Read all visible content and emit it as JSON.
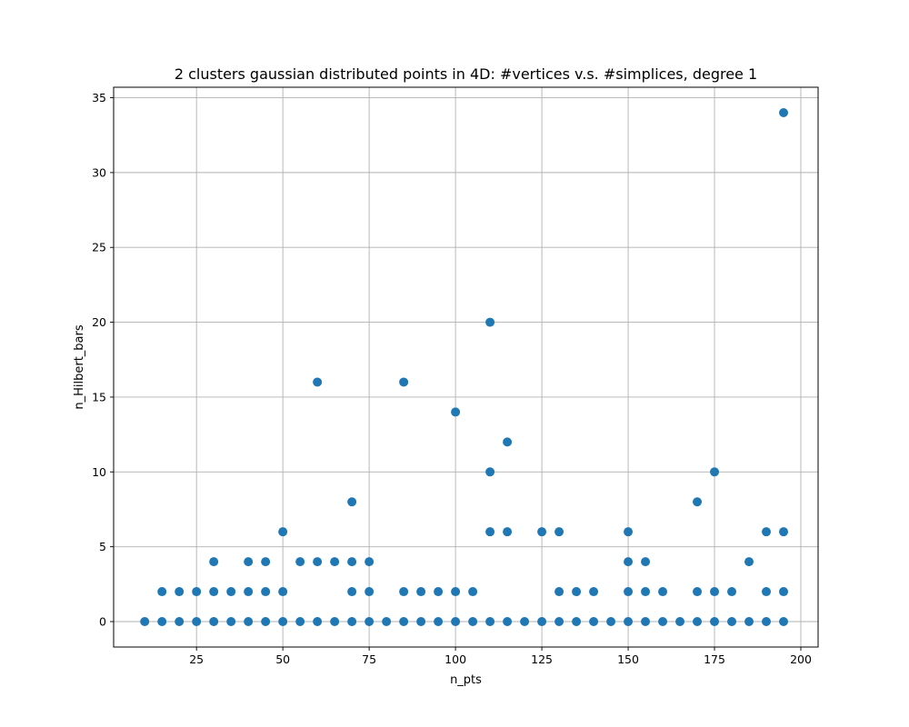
{
  "chart_data": {
    "type": "scatter",
    "title": "2 clusters gaussian distributed points in 4D: #vertices v.s. #simplices, degree 1",
    "xlabel": "n_pts",
    "ylabel": "n_Hilbert_bars",
    "xlim": [
      1,
      205
    ],
    "ylim": [
      -1.7,
      35.7
    ],
    "xticks": [
      25,
      50,
      75,
      100,
      125,
      150,
      175,
      200
    ],
    "yticks": [
      0,
      5,
      10,
      15,
      20,
      25,
      30,
      35
    ],
    "grid": true,
    "marker_color": "#1f77b4",
    "points": [
      [
        10,
        0
      ],
      [
        15,
        0
      ],
      [
        15,
        2
      ],
      [
        20,
        0
      ],
      [
        20,
        2
      ],
      [
        25,
        0
      ],
      [
        25,
        2
      ],
      [
        30,
        0
      ],
      [
        30,
        2
      ],
      [
        30,
        4
      ],
      [
        35,
        0
      ],
      [
        35,
        2
      ],
      [
        40,
        0
      ],
      [
        40,
        2
      ],
      [
        40,
        4
      ],
      [
        45,
        0
      ],
      [
        45,
        2
      ],
      [
        45,
        4
      ],
      [
        50,
        0
      ],
      [
        50,
        2
      ],
      [
        50,
        6
      ],
      [
        55,
        0
      ],
      [
        55,
        4
      ],
      [
        60,
        0
      ],
      [
        60,
        4
      ],
      [
        60,
        16
      ],
      [
        65,
        0
      ],
      [
        65,
        4
      ],
      [
        70,
        0
      ],
      [
        70,
        2
      ],
      [
        70,
        4
      ],
      [
        70,
        8
      ],
      [
        75,
        0
      ],
      [
        75,
        2
      ],
      [
        75,
        4
      ],
      [
        80,
        0
      ],
      [
        85,
        0
      ],
      [
        85,
        2
      ],
      [
        85,
        16
      ],
      [
        90,
        0
      ],
      [
        90,
        2
      ],
      [
        95,
        0
      ],
      [
        95,
        2
      ],
      [
        100,
        0
      ],
      [
        100,
        2
      ],
      [
        100,
        14
      ],
      [
        105,
        0
      ],
      [
        105,
        2
      ],
      [
        110,
        0
      ],
      [
        110,
        6
      ],
      [
        110,
        10
      ],
      [
        110,
        20
      ],
      [
        115,
        0
      ],
      [
        115,
        6
      ],
      [
        115,
        12
      ],
      [
        120,
        0
      ],
      [
        125,
        0
      ],
      [
        125,
        6
      ],
      [
        130,
        0
      ],
      [
        130,
        2
      ],
      [
        130,
        6
      ],
      [
        135,
        0
      ],
      [
        135,
        2
      ],
      [
        140,
        0
      ],
      [
        140,
        2
      ],
      [
        145,
        0
      ],
      [
        150,
        0
      ],
      [
        150,
        2
      ],
      [
        150,
        4
      ],
      [
        150,
        6
      ],
      [
        155,
        0
      ],
      [
        155,
        2
      ],
      [
        155,
        4
      ],
      [
        160,
        0
      ],
      [
        160,
        2
      ],
      [
        165,
        0
      ],
      [
        170,
        0
      ],
      [
        170,
        2
      ],
      [
        170,
        8
      ],
      [
        175,
        0
      ],
      [
        175,
        2
      ],
      [
        175,
        10
      ],
      [
        180,
        0
      ],
      [
        180,
        2
      ],
      [
        185,
        0
      ],
      [
        185,
        4
      ],
      [
        190,
        0
      ],
      [
        190,
        2
      ],
      [
        190,
        6
      ],
      [
        195,
        0
      ],
      [
        195,
        2
      ],
      [
        195,
        6
      ],
      [
        195,
        34
      ]
    ]
  }
}
